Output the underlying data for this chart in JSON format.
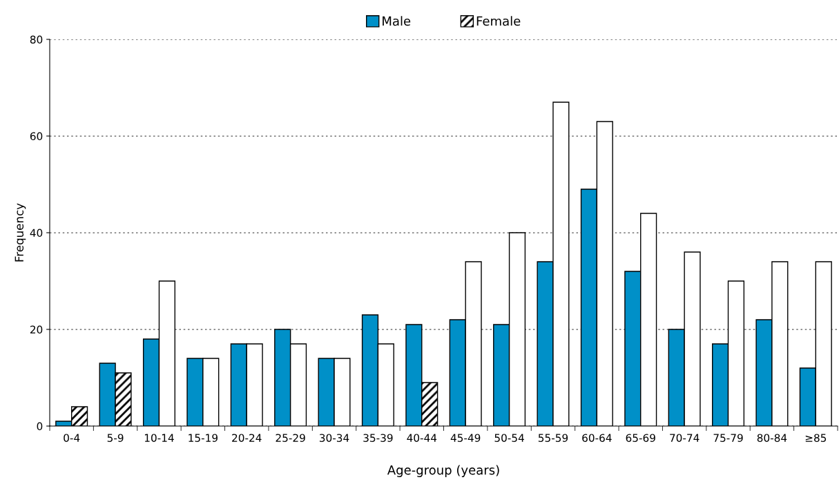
{
  "chart_data": {
    "type": "bar",
    "xlabel": "Age-group (years)",
    "ylabel": "Frequency",
    "categories": [
      "0-4",
      "5-9",
      "10-14",
      "15-19",
      "20-24",
      "25-29",
      "30-34",
      "35-39",
      "40-44",
      "45-49",
      "50-54",
      "55-59",
      "60-64",
      "65-69",
      "70-74",
      "75-79",
      "80-84",
      "≥85"
    ],
    "series": [
      {
        "name": "Male",
        "color": "#0090c8",
        "values": [
          1,
          13,
          18,
          14,
          17,
          20,
          14,
          23,
          21,
          22,
          21,
          34,
          49,
          32,
          20,
          17,
          22,
          12
        ]
      },
      {
        "name": "Female",
        "colors": [
          "#000000",
          "#000000",
          "#ffffff",
          "#ffffff",
          "#ffffff",
          "#ffffff",
          "#ffffff",
          "#ffffff",
          "#000000",
          "#ffffff",
          "#ffffff",
          "#ffffff",
          "#ffffff",
          "#ffffff",
          "#ffffff",
          "#ffffff",
          "#ffffff",
          "#ffffff"
        ],
        "values": [
          4,
          11,
          30,
          14,
          17,
          17,
          14,
          17,
          9,
          34,
          40,
          67,
          63,
          44,
          36,
          30,
          34,
          34
        ]
      }
    ],
    "ylim": [
      0,
      80
    ],
    "yticks": [
      0,
      20,
      40,
      60,
      80
    ],
    "grid": "y",
    "legend": "top"
  }
}
